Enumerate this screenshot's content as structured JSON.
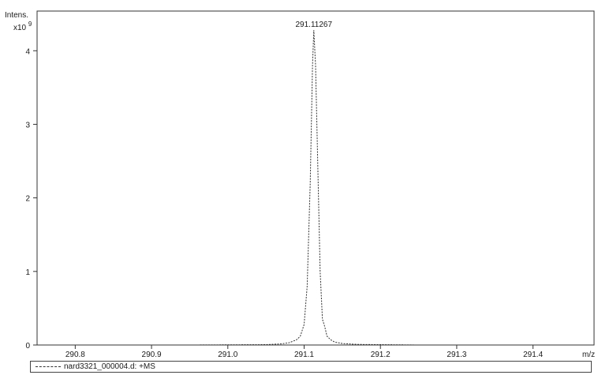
{
  "chart_data": {
    "type": "line",
    "y_axis_title": "Intens.",
    "y_axis_scale_label": "x10",
    "y_axis_scale_exponent": "9",
    "x_axis_unit": "m/z",
    "x_ticks": [
      "290.8",
      "290.9",
      "291.0",
      "291.1",
      "291.2",
      "291.3",
      "291.4"
    ],
    "y_ticks": [
      "0",
      "1",
      "2",
      "3",
      "4"
    ],
    "xlim": [
      290.75,
      291.48
    ],
    "ylim": [
      0,
      4.4
    ],
    "peak_label": "291.11267",
    "series": [
      {
        "name": "nard3321_000004.d: +MS",
        "line_style": "dashed",
        "x": [
          290.75,
          290.95,
          291.05,
          291.07,
          291.08,
          291.09,
          291.095,
          291.1,
          291.104,
          291.108,
          291.111,
          291.1127,
          291.115,
          291.118,
          291.121,
          291.124,
          291.127,
          291.13,
          291.135,
          291.14,
          291.15,
          291.17,
          291.25,
          291.48
        ],
        "y": [
          0,
          0,
          0.005,
          0.015,
          0.03,
          0.07,
          0.12,
          0.28,
          0.8,
          2.2,
          3.8,
          4.28,
          3.8,
          2.4,
          1.0,
          0.35,
          0.25,
          0.12,
          0.07,
          0.04,
          0.02,
          0.008,
          0.0,
          0.0
        ]
      }
    ]
  },
  "legend": {
    "entry": "nard3321_000004.d: +MS"
  }
}
